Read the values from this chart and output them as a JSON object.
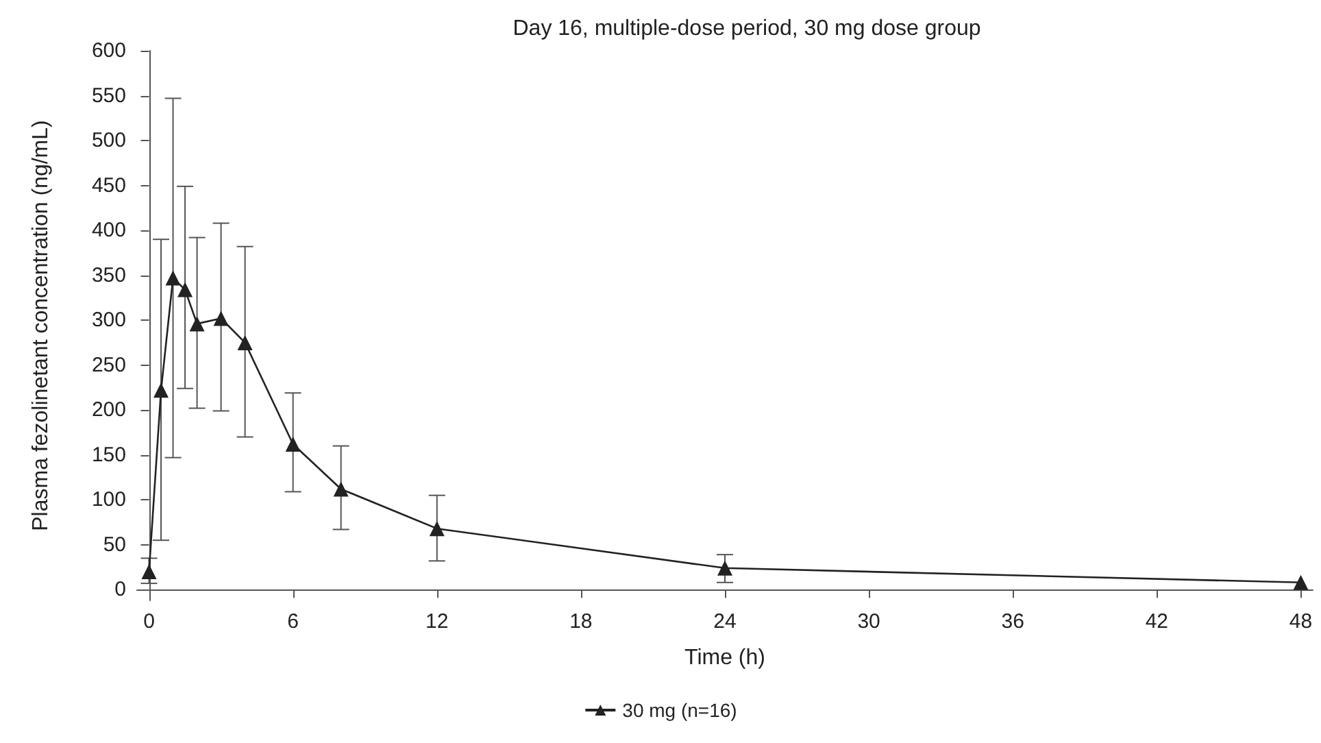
{
  "chart_data": {
    "type": "line",
    "title": "Day 16, multiple-dose period, 30 mg dose group",
    "xlabel": "Time (h)",
    "ylabel": "Plasma fezolinetant concentration (ng/mL)",
    "x": [
      0,
      0.5,
      1,
      1.5,
      2,
      3,
      4,
      6,
      8,
      12,
      24,
      48
    ],
    "series": [
      {
        "name": "30 mg (n=16)",
        "color": "#222222",
        "values": [
          20,
          222,
          347,
          334,
          296,
          302,
          275,
          162,
          112,
          68,
          24,
          8
        ],
        "errors": [
          [
            7,
            35
          ],
          [
            55,
            390
          ],
          [
            147,
            547
          ],
          [
            224,
            449
          ],
          [
            202,
            392
          ],
          [
            199,
            408
          ],
          [
            170,
            382
          ],
          [
            109,
            219
          ],
          [
            67,
            160
          ],
          [
            32,
            105
          ],
          [
            8,
            39
          ],
          null
        ]
      }
    ],
    "xlim": [
      -0.5,
      48.5
    ],
    "xticks": [
      0,
      6,
      12,
      18,
      24,
      30,
      36,
      42,
      48
    ],
    "ylim": [
      -12,
      600
    ],
    "yticks": [
      0,
      50,
      100,
      150,
      200,
      250,
      300,
      350,
      400,
      450,
      500,
      550,
      600
    ],
    "legend": "bottom",
    "marker": "triangle",
    "line_style": "solid"
  }
}
